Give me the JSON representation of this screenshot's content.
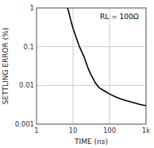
{
  "chart_data": {
    "type": "line",
    "title": "",
    "xlabel": "TIME (ns)",
    "ylabel": "SETTLING ERROR (%)",
    "annotation": "RL = 100Ω",
    "x": [
      7,
      7.5,
      8,
      9,
      10,
      12,
      15,
      20,
      25,
      30,
      40,
      50,
      60,
      80,
      100,
      150,
      200,
      300,
      500,
      700,
      1000
    ],
    "values": [
      1.0,
      0.85,
      0.65,
      0.42,
      0.3,
      0.18,
      0.1,
      0.055,
      0.03,
      0.02,
      0.012,
      0.009,
      0.008,
      0.0068,
      0.006,
      0.005,
      0.0045,
      0.004,
      0.0035,
      0.0032,
      0.003
    ],
    "color": "#000000",
    "xlim": [
      1,
      1000
    ],
    "ylim": [
      0.001,
      1
    ],
    "xticks": [
      1,
      10,
      100,
      {
        "value": 1000,
        "label": "1k"
      }
    ],
    "yticks": [
      0.001,
      0.01,
      0.1,
      1
    ],
    "log": true,
    "grid": true
  }
}
